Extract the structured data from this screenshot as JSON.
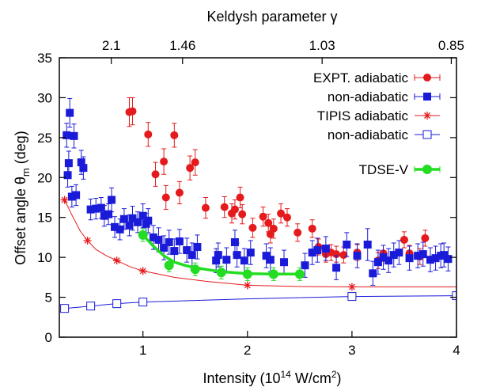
{
  "chart_data": {
    "type": "scatter",
    "xlabel": "Intensity (10",
    "xlabel_sup": "14",
    "xlabel_rest": " W/cm",
    "xlabel_sup2": "2",
    "xlabel_end": ")",
    "ylabel": "Offset angle θ",
    "ylabel_sub": "m",
    "ylabel_end": " (deg)",
    "x2label": "Keldysh parameter γ",
    "xlim": [
      0.2,
      4.0
    ],
    "ylim": [
      0,
      35
    ],
    "x_ticks": [
      1,
      2,
      3,
      4
    ],
    "y_ticks": [
      0,
      5,
      10,
      15,
      20,
      25,
      30,
      35
    ],
    "x2_ticks": [
      {
        "label": "2.1",
        "x": 0.9
      },
      {
        "label": "1.46",
        "x": 1.86
      },
      {
        "label": "1.03",
        "x": 3.74
      },
      {
        "label": "0.85",
        "x": 5.48
      }
    ],
    "legend_position": "top-right",
    "series": [
      {
        "name": "EXPT. adiabatic",
        "style": "red-circle-errorbar",
        "color": "#e41a1c",
        "points": [
          [
            0.87,
            28.2,
            1.8
          ],
          [
            0.9,
            28.3,
            1.7
          ],
          [
            1.05,
            25.4,
            1.5
          ],
          [
            1.12,
            20.4,
            1.5
          ],
          [
            1.2,
            22.0,
            1.6
          ],
          [
            1.22,
            17.5,
            1.5
          ],
          [
            1.3,
            25.3,
            1.5
          ],
          [
            1.35,
            18.1,
            1.4
          ],
          [
            1.45,
            21.2,
            1.5
          ],
          [
            1.5,
            21.9,
            1.6
          ],
          [
            1.6,
            16.2,
            1.3
          ],
          [
            1.78,
            16.3,
            1.3
          ],
          [
            1.85,
            15.5,
            1.2
          ],
          [
            1.88,
            16.0,
            1.2
          ],
          [
            1.93,
            17.5,
            1.3
          ],
          [
            1.95,
            15.4,
            1.2
          ],
          [
            2.05,
            13.7,
            1.2
          ],
          [
            2.15,
            15.1,
            1.2
          ],
          [
            2.2,
            14.3,
            1.1
          ],
          [
            2.22,
            12.9,
            1.1
          ],
          [
            2.25,
            13.6,
            1.2
          ],
          [
            2.32,
            15.5,
            1.2
          ],
          [
            2.38,
            15.0,
            1.1
          ],
          [
            2.48,
            13.1,
            1.1
          ],
          [
            2.62,
            13.6,
            1.1
          ],
          [
            2.68,
            11.3,
            1.0
          ],
          [
            2.75,
            10.4,
            1.0
          ],
          [
            2.8,
            10.6,
            1.0
          ],
          [
            2.85,
            10.4,
            1.0
          ],
          [
            2.92,
            10.3,
            1.0
          ],
          [
            3.05,
            10.6,
            1.0
          ],
          [
            3.25,
            9.6,
            1.0
          ],
          [
            3.3,
            10.5,
            1.0
          ],
          [
            3.5,
            12.2,
            1.0
          ],
          [
            3.55,
            10.5,
            1.0
          ],
          [
            3.65,
            10.1,
            1.0
          ],
          [
            3.7,
            12.4,
            1.0
          ]
        ]
      },
      {
        "name": "non-adiabatic",
        "style": "blue-filled-square-errorbar",
        "color": "#1a1ad9",
        "points": [
          [
            0.27,
            25.3,
            1.5
          ],
          [
            0.28,
            20.3,
            1.5
          ],
          [
            0.29,
            21.8,
            1.5
          ],
          [
            0.3,
            28.1,
            1.8
          ],
          [
            0.32,
            17.6,
            1.3
          ],
          [
            0.34,
            25.2,
            1.5
          ],
          [
            0.36,
            17.8,
            1.3
          ],
          [
            0.41,
            21.9,
            1.5
          ],
          [
            0.43,
            21.2,
            1.4
          ],
          [
            0.5,
            16.0,
            1.3
          ],
          [
            0.55,
            16.1,
            1.3
          ],
          [
            0.6,
            16.2,
            1.3
          ],
          [
            0.63,
            15.2,
            1.3
          ],
          [
            0.67,
            15.4,
            1.3
          ],
          [
            0.7,
            17.2,
            1.5
          ],
          [
            0.73,
            13.8,
            1.3
          ],
          [
            0.78,
            13.5,
            1.3
          ],
          [
            0.82,
            14.8,
            1.3
          ],
          [
            0.87,
            14.0,
            1.3
          ],
          [
            0.9,
            14.9,
            1.5
          ],
          [
            0.95,
            14.4,
            1.3
          ],
          [
            1.0,
            15.2,
            1.5
          ],
          [
            1.03,
            14.2,
            1.3
          ],
          [
            1.05,
            14.6,
            1.5
          ],
          [
            1.1,
            12.5,
            1.5
          ],
          [
            1.15,
            12.2,
            1.5
          ],
          [
            1.2,
            11.2,
            1.5
          ],
          [
            1.25,
            11.9,
            1.5
          ],
          [
            1.3,
            10.8,
            1.5
          ],
          [
            1.35,
            12.0,
            1.5
          ],
          [
            1.42,
            10.9,
            1.5
          ],
          [
            1.47,
            10.3,
            1.5
          ],
          [
            1.52,
            11.3,
            1.5
          ],
          [
            1.7,
            9.6,
            1.5
          ],
          [
            1.72,
            10.3,
            1.5
          ],
          [
            1.8,
            9.7,
            1.5
          ],
          [
            1.88,
            11.9,
            1.5
          ],
          [
            1.9,
            10.3,
            1.5
          ],
          [
            1.97,
            9.6,
            1.5
          ],
          [
            2.03,
            10.6,
            1.5
          ],
          [
            2.18,
            10.2,
            1.5
          ],
          [
            2.22,
            9.7,
            1.5
          ],
          [
            2.35,
            9.4,
            1.5
          ],
          [
            2.55,
            9.0,
            1.5
          ],
          [
            2.62,
            10.6,
            1.5
          ],
          [
            2.67,
            10.9,
            1.5
          ],
          [
            2.75,
            11.1,
            1.5
          ],
          [
            2.85,
            8.7,
            1.5
          ],
          [
            2.95,
            11.6,
            1.5
          ],
          [
            3.05,
            10.2,
            1.5
          ],
          [
            3.15,
            11.6,
            2.0
          ],
          [
            3.2,
            8.0,
            1.5
          ],
          [
            3.25,
            9.4,
            1.5
          ],
          [
            3.3,
            10.0,
            1.5
          ],
          [
            3.35,
            9.6,
            1.5
          ],
          [
            3.4,
            10.3,
            1.5
          ],
          [
            3.45,
            10.6,
            1.5
          ],
          [
            3.55,
            9.9,
            1.5
          ],
          [
            3.63,
            10.2,
            1.5
          ],
          [
            3.68,
            10.4,
            1.5
          ],
          [
            3.75,
            9.7,
            1.5
          ],
          [
            3.8,
            9.9,
            1.5
          ],
          [
            3.85,
            10.2,
            1.5
          ],
          [
            3.88,
            10.3,
            1.5
          ],
          [
            3.92,
            9.8,
            1.5
          ]
        ]
      },
      {
        "name": "TIPIS adiabatic",
        "style": "red-star-line",
        "color": "#e41a1c",
        "points": [
          [
            0.25,
            17.2
          ],
          [
            0.47,
            12.1
          ],
          [
            0.75,
            9.6
          ],
          [
            1.0,
            8.3
          ],
          [
            2.0,
            6.5
          ],
          [
            3.0,
            6.3
          ]
        ],
        "curve": [
          [
            0.25,
            17.2
          ],
          [
            0.32,
            15.3
          ],
          [
            0.4,
            13.3
          ],
          [
            0.47,
            12.1
          ],
          [
            0.55,
            11.0
          ],
          [
            0.65,
            10.2
          ],
          [
            0.75,
            9.6
          ],
          [
            0.88,
            8.8
          ],
          [
            1.0,
            8.3
          ],
          [
            1.3,
            7.5
          ],
          [
            1.6,
            7.0
          ],
          [
            2.0,
            6.5
          ],
          [
            2.5,
            6.35
          ],
          [
            3.0,
            6.3
          ],
          [
            3.5,
            6.3
          ],
          [
            4.0,
            6.3
          ]
        ]
      },
      {
        "name": "non-adiabatic",
        "style": "blue-open-square-line",
        "color": "#1a1ad9",
        "points": [
          [
            0.25,
            3.6
          ],
          [
            0.5,
            3.9
          ],
          [
            0.75,
            4.2
          ],
          [
            1.0,
            4.4
          ],
          [
            3.0,
            5.1
          ],
          [
            4.0,
            5.2
          ]
        ],
        "curve": [
          [
            0.25,
            3.6
          ],
          [
            0.5,
            3.9
          ],
          [
            0.75,
            4.2
          ],
          [
            1.0,
            4.4
          ],
          [
            2.0,
            4.8
          ],
          [
            3.0,
            5.1
          ],
          [
            4.0,
            5.2
          ]
        ]
      },
      {
        "name": "TDSE-V",
        "style": "green-circle-errorbar-line",
        "color": "#22dd22",
        "points": [
          [
            1.0,
            12.8,
            0.8
          ],
          [
            1.25,
            9.0,
            0.8
          ],
          [
            1.5,
            8.5,
            0.8
          ],
          [
            1.75,
            8.1,
            0.8
          ],
          [
            2.0,
            7.9,
            0.8
          ],
          [
            2.25,
            7.9,
            0.8
          ],
          [
            2.5,
            7.9,
            0.8
          ]
        ],
        "curve": [
          [
            1.0,
            12.8
          ],
          [
            1.1,
            11.4
          ],
          [
            1.2,
            10.2
          ],
          [
            1.3,
            9.4
          ],
          [
            1.4,
            9.0
          ],
          [
            1.5,
            8.7
          ],
          [
            1.75,
            8.2
          ],
          [
            2.0,
            7.95
          ],
          [
            2.25,
            7.9
          ],
          [
            2.5,
            7.9
          ]
        ]
      }
    ]
  }
}
